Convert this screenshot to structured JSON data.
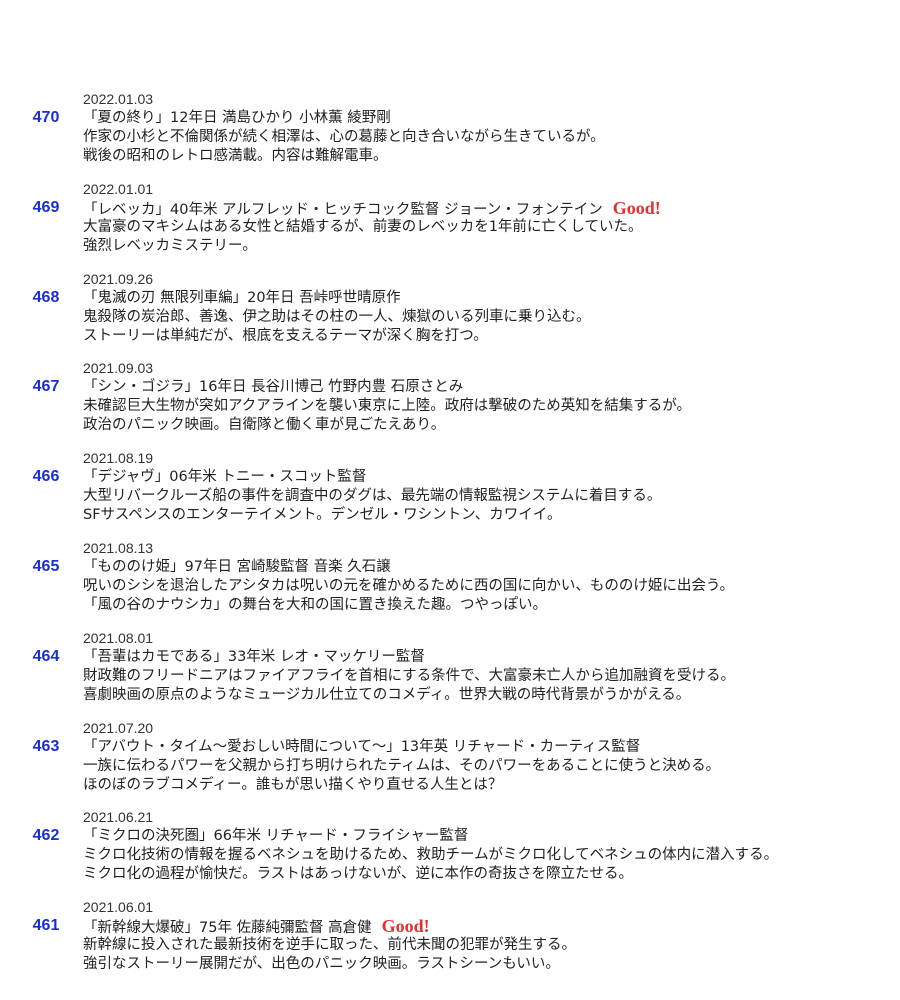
{
  "entries": [
    {
      "number": "470",
      "date": "2022.01.03",
      "title": "「夏の終り」12年日 満島ひかり 小林薫 綾野剛",
      "lines": [
        "作家の小杉と不倫関係が続く相澤は、心の葛藤と向き合いながら生きているが。",
        "戦後の昭和のレトロ感満載。内容は難解電車。"
      ]
    },
    {
      "number": "469",
      "date": "2022.01.01",
      "title": "「レベッカ」40年米 アルフレッド・ヒッチコック監督 ジョーン・フォンテイン",
      "badge": "Good!",
      "lines": [
        "大富豪のマキシムはある女性と結婚するが、前妻のレベッカを1年前に亡くしていた。",
        "強烈レベッカミステリー。"
      ]
    },
    {
      "number": "468",
      "date": "2021.09.26",
      "title": "「鬼滅の刃 無限列車編」20年日 吾峠呼世晴原作",
      "lines": [
        "鬼殺隊の炭治郎、善逸、伊之助はその柱の一人、煉獄のいる列車に乗り込む。",
        "ストーリーは単純だが、根底を支えるテーマが深く胸を打つ。"
      ]
    },
    {
      "number": "467",
      "date": "2021.09.03",
      "title": "「シン・ゴジラ」16年日 長谷川博己 竹野内豊 石原さとみ",
      "lines": [
        "未確認巨大生物が突如アクアラインを襲い東京に上陸。政府は撃破のため英知を結集するが。",
        "政治のパニック映画。自衛隊と働く車が見ごたえあり。"
      ]
    },
    {
      "number": "466",
      "date": "2021.08.19",
      "title": "「デジャヴ」06年米 トニー・スコット監督",
      "lines": [
        "大型リバークルーズ船の事件を調査中のダグは、最先端の情報監視システムに着目する。",
        "SFサスペンスのエンターテイメント。デンゼル・ワシントン、カワイイ。"
      ]
    },
    {
      "number": "465",
      "date": "2021.08.13",
      "title": "「もののけ姫」97年日 宮崎駿監督 音楽 久石譲",
      "lines": [
        "呪いのシシを退治したアシタカは呪いの元を確かめるために西の国に向かい、もののけ姫に出会う。",
        "「風の谷のナウシカ」の舞台を大和の国に置き換えた趣。つやっぽい。"
      ]
    },
    {
      "number": "464",
      "date": "2021.08.01",
      "title": "「吾輩はカモである」33年米 レオ・マッケリー監督",
      "lines": [
        "財政難のフリードニアはファイアフライを首相にする条件で、大富豪未亡人から追加融資を受ける。",
        "喜劇映画の原点のようなミュージカル仕立てのコメディ。世界大戦の時代背景がうかがえる。"
      ]
    },
    {
      "number": "463",
      "date": "2021.07.20",
      "title": "「アバウト・タイム～愛おしい時間について～」13年英 リチャード・カーティス監督",
      "lines": [
        "一族に伝わるパワーを父親から打ち明けられたティムは、そのパワーをあることに使うと決める。",
        "ほのぼのラブコメディー。誰もが思い描くやり直せる人生とは？"
      ]
    },
    {
      "number": "462",
      "date": "2021.06.21",
      "title": "「ミクロの決死圏」66年米 リチャード・フライシャー監督",
      "lines": [
        "ミクロ化技術の情報を握るベネシュを助けるため、救助チームがミクロ化してベネシュの体内に潜入する。",
        "ミクロ化の過程が愉快だ。ラストはあっけないが、逆に本作の奇抜さを際立たせる。"
      ]
    },
    {
      "number": "461",
      "date": "2021.06.01",
      "title": "「新幹線大爆破」75年 佐藤純彌監督 高倉健",
      "badge": "Good!",
      "lines": [
        "新幹線に投入された最新技術を逆手に取った、前代未聞の犯罪が発生する。",
        "強引なストーリー展開だが、出色のパニック映画。ラストシーンもいい。"
      ]
    }
  ]
}
